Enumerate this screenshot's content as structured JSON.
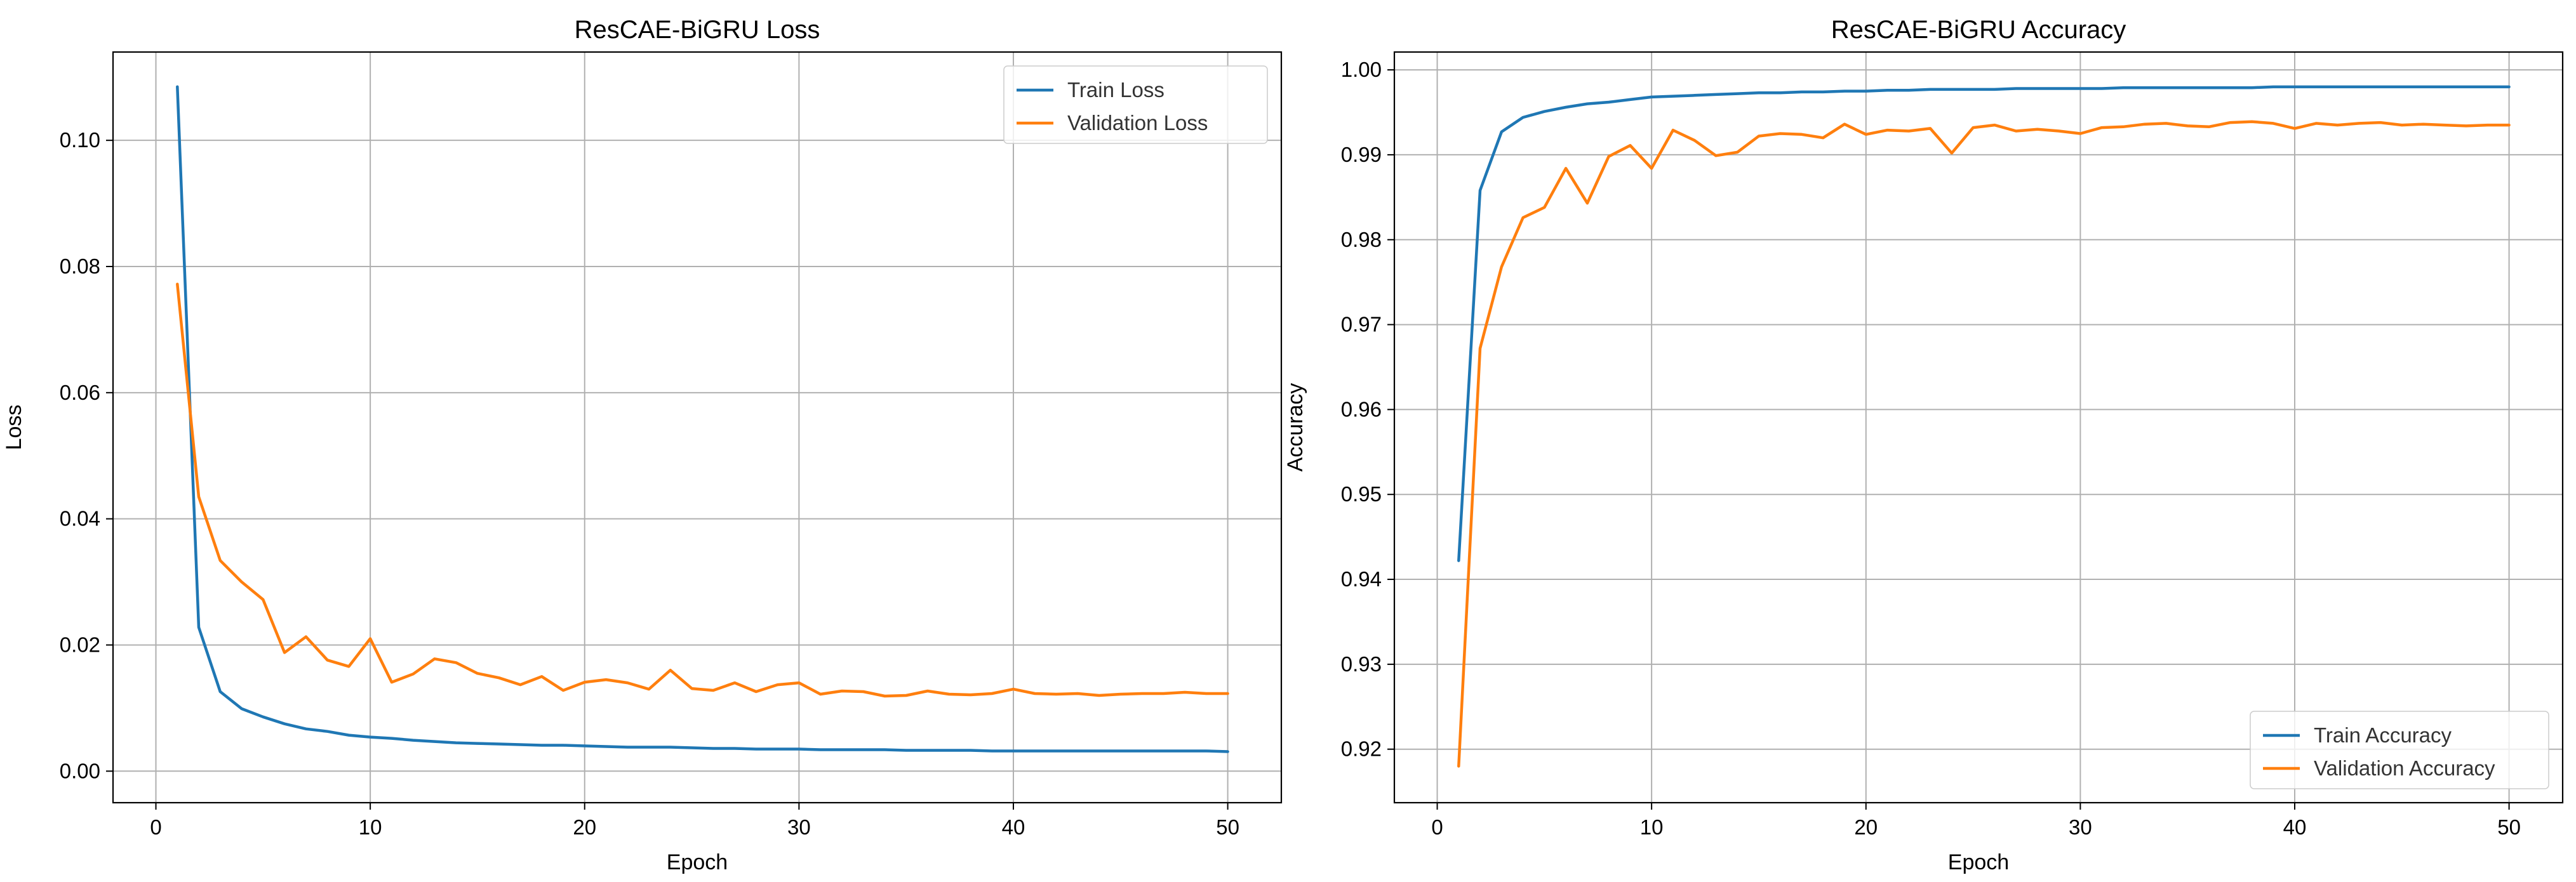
{
  "chart_data": [
    {
      "type": "line",
      "title": "ResCAE-BiGRU Loss",
      "xlabel": "Epoch",
      "ylabel": "Loss",
      "xlim": [
        -2.0,
        52.5
      ],
      "ylim": [
        -0.005,
        0.114
      ],
      "xticks": [
        0,
        10,
        20,
        30,
        40,
        50
      ],
      "xtick_labels": [
        "0",
        "10",
        "20",
        "30",
        "40",
        "50"
      ],
      "yticks": [
        0.0,
        0.02,
        0.04,
        0.06,
        0.08,
        0.1
      ],
      "ytick_labels": [
        "0.00",
        "0.02",
        "0.04",
        "0.06",
        "0.08",
        "0.10"
      ],
      "grid": true,
      "legend_position": "top-right",
      "x": [
        1,
        2,
        3,
        4,
        5,
        6,
        7,
        8,
        9,
        10,
        11,
        12,
        13,
        14,
        15,
        16,
        17,
        18,
        19,
        20,
        21,
        22,
        23,
        24,
        25,
        26,
        27,
        28,
        29,
        30,
        31,
        32,
        33,
        34,
        35,
        36,
        37,
        38,
        39,
        40,
        41,
        42,
        43,
        44,
        45,
        46,
        47,
        48,
        49,
        50
      ],
      "series": [
        {
          "name": "Train Loss",
          "color": "#1f77b4",
          "values": [
            0.1085,
            0.0228,
            0.0126,
            0.0099,
            0.0086,
            0.0075,
            0.0067,
            0.0063,
            0.0057,
            0.0054,
            0.0052,
            0.0049,
            0.0047,
            0.0045,
            0.0044,
            0.0043,
            0.0042,
            0.0041,
            0.0041,
            0.004,
            0.0039,
            0.0038,
            0.0038,
            0.0038,
            0.0037,
            0.0036,
            0.0036,
            0.0035,
            0.0035,
            0.0035,
            0.0034,
            0.0034,
            0.0034,
            0.0034,
            0.0033,
            0.0033,
            0.0033,
            0.0033,
            0.0032,
            0.0032,
            0.0032,
            0.0032,
            0.0032,
            0.0032,
            0.0032,
            0.0032,
            0.0032,
            0.0032,
            0.0032,
            0.0031
          ]
        },
        {
          "name": "Validation Loss",
          "color": "#ff7f0e",
          "values": [
            0.0772,
            0.0435,
            0.0334,
            0.03,
            0.0272,
            0.0188,
            0.0213,
            0.0176,
            0.0166,
            0.021,
            0.0141,
            0.0154,
            0.0178,
            0.0172,
            0.0155,
            0.0148,
            0.0137,
            0.015,
            0.0128,
            0.0141,
            0.0145,
            0.014,
            0.013,
            0.016,
            0.0131,
            0.0128,
            0.014,
            0.0126,
            0.0137,
            0.014,
            0.0122,
            0.0127,
            0.0126,
            0.0119,
            0.012,
            0.0127,
            0.0122,
            0.0121,
            0.0123,
            0.013,
            0.0123,
            0.0122,
            0.0123,
            0.012,
            0.0122,
            0.0123,
            0.0123,
            0.0125,
            0.0123,
            0.0123
          ]
        }
      ]
    },
    {
      "type": "line",
      "title": "ResCAE-BiGRU Accuracy",
      "xlabel": "Epoch",
      "ylabel": "Accuracy",
      "xlim": [
        -2.0,
        52.5
      ],
      "ylim": [
        0.9137,
        1.0021
      ],
      "xticks": [
        0,
        10,
        20,
        30,
        40,
        50
      ],
      "xtick_labels": [
        "0",
        "10",
        "20",
        "30",
        "40",
        "50"
      ],
      "yticks": [
        0.92,
        0.93,
        0.94,
        0.95,
        0.96,
        0.97,
        0.98,
        0.99,
        1.0
      ],
      "ytick_labels": [
        "0.92",
        "0.93",
        "0.94",
        "0.95",
        "0.96",
        "0.97",
        "0.98",
        "0.99",
        "1.00"
      ],
      "grid": true,
      "legend_position": "bottom-right",
      "x": [
        1,
        2,
        3,
        4,
        5,
        6,
        7,
        8,
        9,
        10,
        11,
        12,
        13,
        14,
        15,
        16,
        17,
        18,
        19,
        20,
        21,
        22,
        23,
        24,
        25,
        26,
        27,
        28,
        29,
        30,
        31,
        32,
        33,
        34,
        35,
        36,
        37,
        38,
        39,
        40,
        41,
        42,
        43,
        44,
        45,
        46,
        47,
        48,
        49,
        50
      ],
      "series": [
        {
          "name": "Train Accuracy",
          "color": "#1f77b4",
          "values": [
            0.9422,
            0.9858,
            0.9927,
            0.9944,
            0.9951,
            0.9956,
            0.996,
            0.9962,
            0.9965,
            0.9968,
            0.9969,
            0.997,
            0.9971,
            0.9972,
            0.9973,
            0.9973,
            0.9974,
            0.9974,
            0.9975,
            0.9975,
            0.9976,
            0.9976,
            0.9977,
            0.9977,
            0.9977,
            0.9977,
            0.9978,
            0.9978,
            0.9978,
            0.9978,
            0.9978,
            0.9979,
            0.9979,
            0.9979,
            0.9979,
            0.9979,
            0.9979,
            0.9979,
            0.998,
            0.998,
            0.998,
            0.998,
            0.998,
            0.998,
            0.998,
            0.998,
            0.998,
            0.998,
            0.998,
            0.998
          ]
        },
        {
          "name": "Validation Accuracy",
          "color": "#ff7f0e",
          "values": [
            0.918,
            0.9672,
            0.9768,
            0.9826,
            0.9838,
            0.9884,
            0.9843,
            0.9898,
            0.9911,
            0.9884,
            0.9929,
            0.9917,
            0.9899,
            0.9903,
            0.9922,
            0.9925,
            0.9924,
            0.992,
            0.9936,
            0.9924,
            0.9929,
            0.9928,
            0.9931,
            0.9902,
            0.9932,
            0.9935,
            0.9928,
            0.993,
            0.9928,
            0.9925,
            0.9932,
            0.9933,
            0.9936,
            0.9937,
            0.9934,
            0.9933,
            0.9938,
            0.9939,
            0.9937,
            0.9931,
            0.9937,
            0.9935,
            0.9937,
            0.9938,
            0.9935,
            0.9936,
            0.9935,
            0.9934,
            0.9935,
            0.9935
          ]
        }
      ]
    }
  ]
}
